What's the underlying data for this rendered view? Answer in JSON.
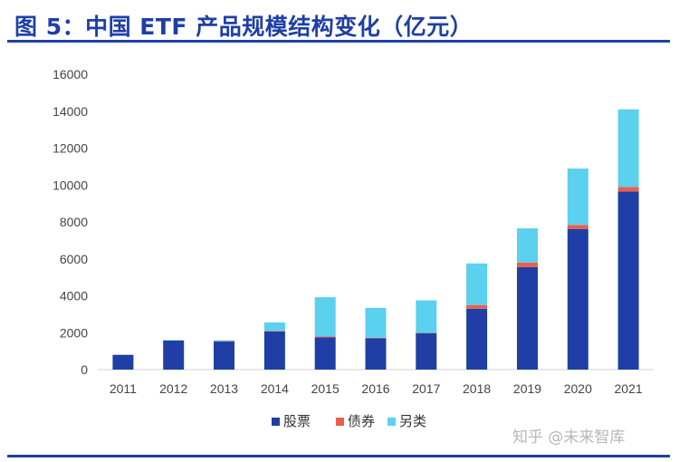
{
  "title": "图 5：中国 ETF 产品规模结构变化（亿元）",
  "watermark": "知乎 @未来智库",
  "colors": {
    "title": "#1f3fa6",
    "stock": "#1f3fa6",
    "bond": "#e8604c",
    "other": "#5bd0ef"
  },
  "chart_data": {
    "type": "bar",
    "stacked": true,
    "categories": [
      "2011",
      "2012",
      "2013",
      "2014",
      "2015",
      "2016",
      "2017",
      "2018",
      "2019",
      "2020",
      "2021"
    ],
    "series": [
      {
        "name": "股票",
        "color": "#1f3fa6",
        "values": [
          800,
          1580,
          1520,
          2070,
          1750,
          1700,
          1980,
          3300,
          5550,
          7620,
          9650
        ]
      },
      {
        "name": "债券",
        "color": "#e8604c",
        "values": [
          0,
          0,
          20,
          30,
          50,
          30,
          20,
          200,
          250,
          220,
          250
        ]
      },
      {
        "name": "另类",
        "color": "#5bd0ef",
        "values": [
          0,
          20,
          50,
          450,
          2120,
          1610,
          1750,
          2250,
          1850,
          3050,
          4200
        ]
      }
    ],
    "yticks": [
      "0",
      "2000",
      "4000",
      "6000",
      "8000",
      "10000",
      "12000",
      "14000",
      "16000"
    ],
    "ylim": [
      0,
      16000
    ],
    "legend_position": "bottom"
  }
}
